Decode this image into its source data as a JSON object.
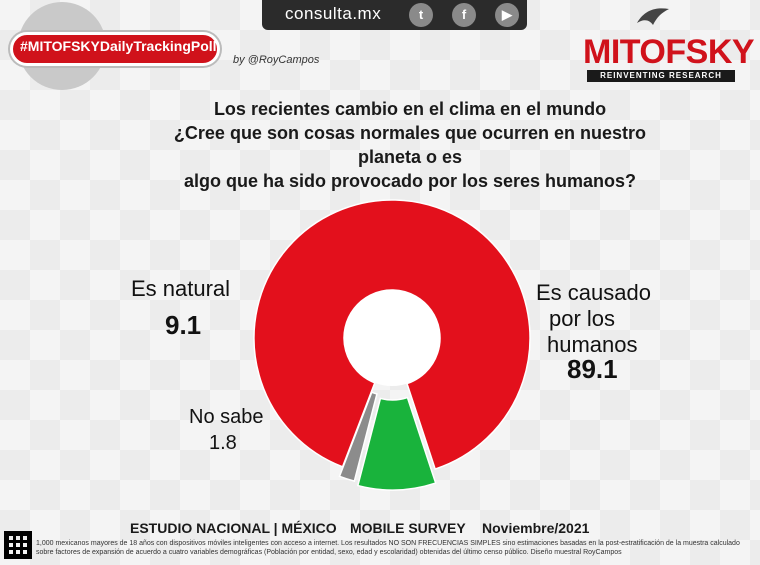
{
  "header": {
    "site": "consulta.mx",
    "social": [
      {
        "name": "twitter-icon",
        "glyph": "t"
      },
      {
        "name": "facebook-icon",
        "glyph": "f"
      },
      {
        "name": "youtube-icon",
        "glyph": "▶"
      }
    ],
    "hashtag": "#MITOFSKYDailyTrackingPoll",
    "byline": "by @RoyCampos",
    "logo": "MITOFSKY",
    "logo_sub": "REINVENTING RESEARCH"
  },
  "question": {
    "line1": "Los recientes cambio en el clima en el mundo",
    "line2": "¿Cree que son cosas normales que ocurren en nuestro planeta o es",
    "line3": "algo que ha sido provocado por los seres humanos?"
  },
  "chart_data": {
    "type": "pie",
    "title": "",
    "slices": [
      {
        "label": "Es causado por los humanos",
        "value": 89.1,
        "color": "#e3101c"
      },
      {
        "label": "Es natural",
        "value": 9.1,
        "color": "#19b33c"
      },
      {
        "label": "No sabe",
        "value": 1.8,
        "color": "#8c8c8c"
      }
    ],
    "labels": {
      "causado_line1": "Es causado",
      "causado_line2": "por los",
      "causado_line3": "humanos",
      "causado_value": "89.1",
      "natural": "Es natural",
      "natural_value": "9.1",
      "nosabe": "No sabe",
      "nosabe_value": "1.8"
    }
  },
  "footer": {
    "estudio": "ESTUDIO NACIONAL | MÉXICO",
    "survey": "MOBILE SURVEY",
    "fecha": "Noviembre/2021",
    "note": "1,000 mexicanos mayores de 18 años con dispositivos móviles inteligentes con acceso a internet. Los resultados NO SON FRECUENCIAS SIMPLES sino estimaciones basadas en la post-estratificación de la muestra calculado sobre factores de expansión de acuerdo a cuatro variables demográficas (Población por entidad, sexo, edad y escolaridad) obtenidas del último censo público. Diseño muestral RoyCampos"
  }
}
